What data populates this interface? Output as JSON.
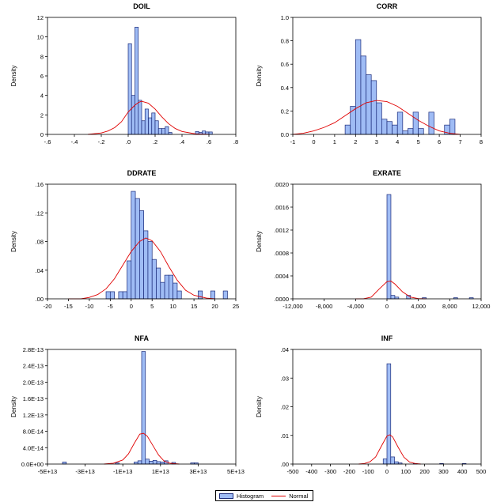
{
  "legend": {
    "histogram_label": "Histogram",
    "normal_label": "Normal",
    "histogram_color": "#9fbcf5",
    "bar_edge_color": "#1a2a7a",
    "normal_color": "#e00000"
  },
  "chart_data": [
    {
      "type": "bar",
      "title": "DOIL",
      "ylabel": "Density",
      "xlim": [
        -0.6,
        0.8
      ],
      "ylim": [
        0,
        12
      ],
      "xticks": [
        -0.6,
        -0.4,
        -0.2,
        0,
        0.2,
        0.4,
        0.6,
        0.8
      ],
      "xtick_labels": [
        "-.6",
        "-.4",
        "-.2",
        ".0",
        ".2",
        ".4",
        ".6",
        ".8"
      ],
      "yticks": [
        0,
        2,
        4,
        6,
        8,
        10,
        12
      ],
      "ytick_labels": [
        "0",
        "2",
        "4",
        "6",
        "8",
        "10",
        "12"
      ],
      "bin_width": 0.025,
      "bin_starts": [
        0.0,
        0.025,
        0.05,
        0.075,
        0.1,
        0.125,
        0.15,
        0.175,
        0.2,
        0.225,
        0.25,
        0.275,
        0.3,
        0.5,
        0.525,
        0.55,
        0.575,
        0.6
      ],
      "bar_values": [
        9.3,
        4.0,
        11.0,
        3.5,
        1.4,
        2.6,
        1.7,
        2.2,
        1.4,
        0.6,
        0.6,
        0.8,
        0.2,
        0.3,
        0.2,
        0.35,
        0.25,
        0.25
      ],
      "normal_x": [
        -0.3,
        -0.2,
        -0.15,
        -0.1,
        -0.05,
        0.0,
        0.05,
        0.08,
        0.1,
        0.15,
        0.2,
        0.25,
        0.3,
        0.35,
        0.4,
        0.5,
        0.6
      ],
      "normal_y": [
        0.0,
        0.15,
        0.35,
        0.7,
        1.3,
        2.3,
        3.0,
        3.3,
        3.4,
        3.2,
        2.6,
        1.8,
        1.1,
        0.6,
        0.3,
        0.05,
        0.0
      ]
    },
    {
      "type": "bar",
      "title": "CORR",
      "ylabel": "Density",
      "xlim": [
        -1,
        8
      ],
      "ylim": [
        0,
        1.0
      ],
      "xticks": [
        -1,
        0,
        1,
        2,
        3,
        4,
        5,
        6,
        7,
        8
      ],
      "xtick_labels": [
        "-1",
        "0",
        "1",
        "2",
        "3",
        "4",
        "5",
        "6",
        "7",
        "8"
      ],
      "yticks": [
        0,
        0.2,
        0.4,
        0.6,
        0.8,
        1.0
      ],
      "ytick_labels": [
        "0.0",
        "0.2",
        "0.4",
        "0.6",
        "0.8",
        "1.0"
      ],
      "bin_width": 0.25,
      "bin_starts": [
        1.5,
        1.75,
        2.0,
        2.25,
        2.5,
        2.75,
        3.0,
        3.25,
        3.5,
        3.75,
        4.0,
        4.25,
        4.5,
        4.75,
        5.0,
        5.5,
        6.25,
        6.5
      ],
      "bar_values": [
        0.08,
        0.24,
        0.81,
        0.67,
        0.51,
        0.46,
        0.27,
        0.13,
        0.11,
        0.08,
        0.19,
        0.03,
        0.05,
        0.19,
        0.05,
        0.19,
        0.08,
        0.13
      ],
      "normal_x": [
        -1,
        -0.5,
        0,
        0.5,
        1,
        1.5,
        2,
        2.5,
        3,
        3.5,
        4,
        4.5,
        5,
        5.5,
        6,
        6.5,
        7
      ],
      "normal_y": [
        0.0,
        0.01,
        0.03,
        0.06,
        0.1,
        0.16,
        0.22,
        0.27,
        0.29,
        0.28,
        0.24,
        0.18,
        0.12,
        0.07,
        0.03,
        0.01,
        0.0
      ]
    },
    {
      "type": "bar",
      "title": "DDRATE",
      "ylabel": "Density",
      "xlim": [
        -20,
        25
      ],
      "ylim": [
        0,
        0.16
      ],
      "xticks": [
        -20,
        -15,
        -10,
        -5,
        0,
        5,
        10,
        15,
        20,
        25
      ],
      "xtick_labels": [
        "-20",
        "-15",
        "-10",
        "-5",
        "0",
        "5",
        "10",
        "15",
        "20",
        "25"
      ],
      "yticks": [
        0,
        0.04,
        0.08,
        0.12,
        0.16
      ],
      "ytick_labels": [
        ".00",
        ".04",
        ".08",
        ".12",
        ".16"
      ],
      "bin_width": 1,
      "bin_starts": [
        -6,
        -5,
        -4,
        -3,
        -2,
        -1,
        0,
        1,
        2,
        3,
        4,
        5,
        6,
        7,
        8,
        9,
        10,
        11,
        16,
        19,
        22
      ],
      "bar_values": [
        0.01,
        0.01,
        0.0,
        0.01,
        0.01,
        0.053,
        0.15,
        0.14,
        0.123,
        0.095,
        0.08,
        0.055,
        0.043,
        0.023,
        0.033,
        0.033,
        0.022,
        0.011,
        0.011,
        0.011,
        0.011
      ],
      "normal_x": [
        -15,
        -12,
        -10,
        -8,
        -6,
        -4,
        -2,
        0,
        2,
        3.5,
        5,
        7,
        9,
        11,
        13,
        15,
        18,
        20
      ],
      "normal_y": [
        0.0,
        0.0,
        0.002,
        0.006,
        0.014,
        0.028,
        0.047,
        0.066,
        0.08,
        0.085,
        0.081,
        0.066,
        0.045,
        0.026,
        0.012,
        0.005,
        0.001,
        0.0
      ]
    },
    {
      "type": "bar",
      "title": "EXRATE",
      "ylabel": "Density",
      "xlim": [
        -12000,
        12000
      ],
      "ylim": [
        0,
        0.002
      ],
      "xticks": [
        -12000,
        -8000,
        -4000,
        0,
        4000,
        8000,
        12000
      ],
      "xtick_labels": [
        "-12,000",
        "-8,000",
        "-4,000",
        "0",
        "4,000",
        "8,000",
        "12,000"
      ],
      "yticks": [
        0,
        0.0004,
        0.0008,
        0.0012,
        0.0016,
        0.002
      ],
      "ytick_labels": [
        ".0000",
        ".0004",
        ".0008",
        ".0012",
        ".0016",
        ".0020"
      ],
      "bin_width": 500,
      "bin_starts": [
        0,
        500,
        1000,
        2500,
        4500,
        8500,
        10500
      ],
      "bar_values": [
        0.00182,
        6e-05,
        3e-05,
        6e-05,
        2e-05,
        2e-05,
        2e-05
      ],
      "normal_x": [
        -4000,
        -3000,
        -2000,
        -1000,
        0,
        500,
        1000,
        2000,
        3000,
        4000,
        5000
      ],
      "normal_y": [
        0.0,
        5e-07,
        3e-05,
        0.00017,
        0.0003,
        0.00031,
        0.00026,
        0.00012,
        3e-05,
        4e-06,
        0.0
      ]
    },
    {
      "type": "bar",
      "title": "NFA",
      "ylabel": "Density",
      "xlim": [
        -50000000000000.0,
        50000000000000.0
      ],
      "ylim": [
        0,
        2.8e-13
      ],
      "xticks": [
        -50000000000000.0,
        -30000000000000.0,
        -10000000000000.0,
        10000000000000.0,
        30000000000000.0,
        50000000000000.0
      ],
      "xtick_labels": [
        "-5E+13",
        "-3E+13",
        "-1E+13",
        "1E+13",
        "3E+13",
        "5E+13"
      ],
      "yticks": [
        0,
        4e-14,
        8e-14,
        1.2e-13,
        1.6e-13,
        2e-13,
        2.4e-13,
        2.8e-13
      ],
      "ytick_labels": [
        "0.0E+00",
        "4.0E-14",
        "8.0E-14",
        "1.2E-13",
        "1.6E-13",
        "2.0E-13",
        "2.4E-13",
        "2.8E-13"
      ],
      "bin_width": 2000000000000.0,
      "bin_starts": [
        -42000000000000.0,
        -14000000000000.0,
        -4000000000000.0,
        -2000000000000.0,
        0,
        2000000000000.0,
        4000000000000.0,
        6000000000000.0,
        8000000000000.0,
        10000000000000.0,
        12000000000000.0,
        16000000000000.0,
        26000000000000.0,
        28000000000000.0
      ],
      "bar_values": [
        5e-15,
        3e-15,
        5e-15,
        8e-15,
        2.75e-13,
        1.2e-14,
        7e-15,
        9e-15,
        6e-15,
        5e-15,
        8e-15,
        4e-15,
        3e-15,
        3e-15
      ],
      "normal_x": [
        -20000000000000.0,
        -15000000000000.0,
        -10000000000000.0,
        -7000000000000.0,
        -4000000000000.0,
        -1000000000000.0,
        1000000000000.0,
        3000000000000.0,
        6000000000000.0,
        9000000000000.0,
        12000000000000.0,
        15000000000000.0,
        20000000000000.0
      ],
      "normal_y": [
        0.0,
        2e-15,
        1e-14,
        2.5e-14,
        5e-14,
        7.3e-14,
        7.5e-14,
        6.8e-14,
        4.5e-14,
        2.2e-14,
        7e-15,
        2e-15,
        0.0
      ]
    },
    {
      "type": "bar",
      "title": "INF",
      "ylabel": "Density",
      "xlim": [
        -500,
        500
      ],
      "ylim": [
        0,
        0.04
      ],
      "xticks": [
        -500,
        -400,
        -300,
        -200,
        -100,
        0,
        100,
        200,
        300,
        400,
        500
      ],
      "xtick_labels": [
        "-500",
        "-400",
        "-300",
        "-200",
        "-100",
        "0",
        "100",
        "200",
        "300",
        "400",
        "500"
      ],
      "yticks": [
        0,
        0.01,
        0.02,
        0.03,
        0.04
      ],
      "ytick_labels": [
        ".00",
        ".01",
        ".02",
        ".03",
        ".04"
      ],
      "bin_width": 20,
      "bin_starts": [
        -20,
        0,
        20,
        40,
        60,
        140,
        280,
        400
      ],
      "bar_values": [
        0.0018,
        0.035,
        0.0025,
        0.0008,
        0.0004,
        0.0002,
        0.0002,
        0.0002
      ],
      "normal_x": [
        -150,
        -120,
        -90,
        -60,
        -30,
        0,
        15,
        30,
        60,
        90,
        120,
        150,
        180
      ],
      "normal_y": [
        0.0,
        0.0002,
        0.0008,
        0.0025,
        0.0062,
        0.0098,
        0.0102,
        0.0095,
        0.0058,
        0.0024,
        0.0007,
        0.0002,
        0.0
      ]
    }
  ]
}
